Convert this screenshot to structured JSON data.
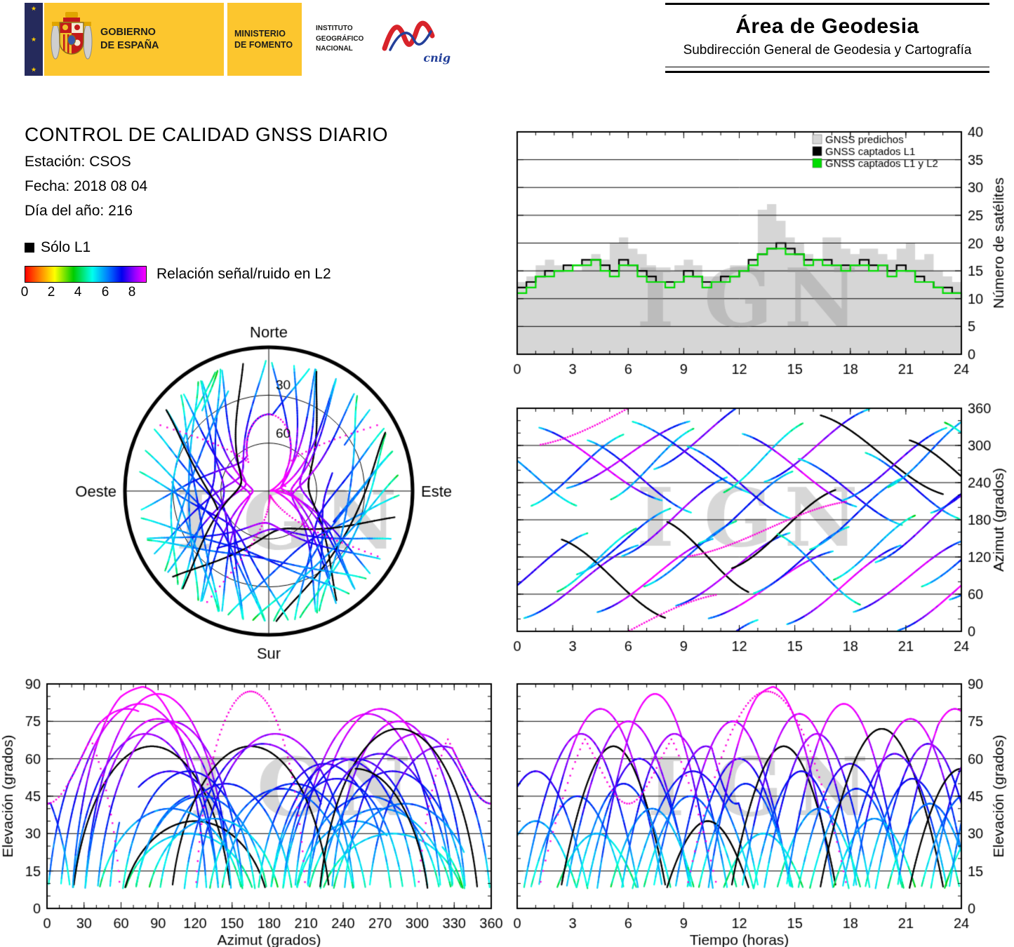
{
  "header": {
    "logo": {
      "gobierno_line1": "GOBIERNO",
      "gobierno_line2": "DE ESPAÑA",
      "ministerio_line1": "MINISTERIO",
      "ministerio_line2": "DE FOMENTO",
      "instituto_line1": "INSTITUTO",
      "instituto_line2": "GEOGRÁFICO",
      "instituto_line3": "NACIONAL",
      "cnig_label": "cnig",
      "yellow": "#FCC62E",
      "navy": "#252A5C"
    },
    "area": {
      "title": "Área de Geodesia",
      "subtitle": "Subdirección General de Geodesia y Cartografía"
    }
  },
  "report": {
    "title": "CONTROL DE CALIDAD GNSS DIARIO",
    "station_label": "Estación: CSOS",
    "date_label": "Fecha: 2018 08 04",
    "doy_label": "Día del año: 216"
  },
  "legend": {
    "l1_only": "Sólo L1",
    "l1_color": "#000000",
    "snr_label": "Relación señal/ruido en L2",
    "snr_ticks": [
      0,
      2,
      4,
      6,
      8
    ]
  },
  "chart_data": {
    "watermark": "IGN",
    "dotted_color": "#ff00dd",
    "colormap_stops": [
      [
        0,
        "#ff0000"
      ],
      [
        1.3,
        "#ff9900"
      ],
      [
        2.2,
        "#ffff00"
      ],
      [
        3.6,
        "#00cc00"
      ],
      [
        5.0,
        "#00ffee"
      ],
      [
        6.2,
        "#0077ff"
      ],
      [
        7.2,
        "#0000ee"
      ],
      [
        8.2,
        "#9900ff"
      ],
      [
        9,
        "#ff00ff"
      ]
    ],
    "model": {
      "elevation_cutoff_deg": 8,
      "north_max_el": 42,
      "north_sigma_deg": 40,
      "snr_base": 3.1,
      "snr_gain": 5.6,
      "snr_exp": 0.6,
      "snr_noise": 1.2
    },
    "satellite_passes": {
      "format": [
        "t_start_h",
        "duration_h",
        "az_start_deg",
        "az_end_deg",
        "el_max_deg",
        "snr_offset",
        "style_0norm_1L1only_2dotted"
      ],
      "passes": [
        [
          -2.0,
          6.0,
          40,
          160,
          55,
          0.3,
          0
        ],
        [
          -1.5,
          5.0,
          300,
          200,
          35,
          -0.2,
          0
        ],
        [
          0.2,
          6.5,
          20,
          140,
          70,
          0.5,
          0
        ],
        [
          0.5,
          5.5,
          200,
          320,
          45,
          0.0,
          0
        ],
        [
          1.0,
          7.0,
          330,
          210,
          80,
          0.6,
          0
        ],
        [
          1.8,
          5.0,
          60,
          170,
          30,
          -0.5,
          0
        ],
        [
          2.2,
          6.0,
          150,
          20,
          65,
          0.4,
          1
        ],
        [
          2.5,
          7.0,
          230,
          340,
          75,
          0.7,
          0
        ],
        [
          3.0,
          5.5,
          90,
          200,
          50,
          0.0,
          0
        ],
        [
          3.6,
          6.0,
          310,
          190,
          60,
          0.2,
          0
        ],
        [
          4.2,
          6.5,
          30,
          150,
          86,
          0.8,
          0
        ],
        [
          4.8,
          5.0,
          210,
          330,
          40,
          -0.3,
          0
        ],
        [
          5.5,
          6.0,
          120,
          250,
          70,
          0.5,
          0
        ],
        [
          6.0,
          7.0,
          340,
          220,
          55,
          0.1,
          0
        ],
        [
          6.6,
          5.5,
          70,
          180,
          45,
          -0.2,
          0
        ],
        [
          7.2,
          6.0,
          260,
          380,
          65,
          0.4,
          0
        ],
        [
          7.8,
          5.0,
          180,
          60,
          35,
          -0.4,
          1
        ],
        [
          8.4,
          6.5,
          40,
          160,
          75,
          0.6,
          0
        ],
        [
          9.0,
          6.0,
          300,
          180,
          60,
          0.2,
          0
        ],
        [
          9.6,
          5.5,
          140,
          260,
          50,
          0.0,
          0
        ],
        [
          10.2,
          7.0,
          20,
          130,
          89,
          0.8,
          0
        ],
        [
          10.8,
          5.0,
          220,
          340,
          30,
          -0.5,
          0
        ],
        [
          11.4,
          6.0,
          100,
          230,
          65,
          0.3,
          1
        ],
        [
          12.0,
          6.5,
          320,
          200,
          78,
          0.6,
          0
        ],
        [
          12.6,
          5.5,
          60,
          170,
          55,
          0.1,
          0
        ],
        [
          13.2,
          6.0,
          240,
          360,
          70,
          0.4,
          0
        ],
        [
          13.8,
          5.0,
          160,
          40,
          40,
          -0.3,
          0
        ],
        [
          14.4,
          6.5,
          10,
          140,
          82,
          0.7,
          0
        ],
        [
          15.0,
          6.0,
          280,
          170,
          58,
          0.1,
          0
        ],
        [
          15.6,
          5.5,
          130,
          250,
          48,
          -0.1,
          0
        ],
        [
          16.2,
          7.0,
          350,
          220,
          72,
          0.5,
          1
        ],
        [
          16.8,
          5.0,
          80,
          190,
          36,
          -0.4,
          0
        ],
        [
          17.4,
          6.0,
          210,
          330,
          62,
          0.3,
          0
        ],
        [
          18.0,
          6.5,
          30,
          150,
          76,
          0.6,
          0
        ],
        [
          18.6,
          5.5,
          290,
          180,
          52,
          0.0,
          0
        ],
        [
          19.2,
          6.0,
          110,
          240,
          66,
          0.3,
          0
        ],
        [
          19.8,
          5.0,
          230,
          350,
          42,
          -0.2,
          0
        ],
        [
          20.4,
          6.5,
          0,
          130,
          80,
          0.7,
          0
        ],
        [
          21.0,
          6.0,
          310,
          190,
          56,
          0.1,
          1
        ],
        [
          21.6,
          5.5,
          70,
          180,
          46,
          -0.1,
          0
        ],
        [
          22.2,
          6.0,
          190,
          310,
          68,
          0.4,
          0
        ],
        [
          22.8,
          5.0,
          340,
          230,
          34,
          -0.5,
          0
        ],
        [
          23.2,
          6.0,
          50,
          160,
          74,
          0.5,
          0
        ],
        [
          1.0,
          10.0,
          300,
          420,
          88,
          0.8,
          2
        ],
        [
          9.0,
          9.0,
          120,
          210,
          87,
          0.8,
          2
        ]
      ]
    },
    "charts": [
      {
        "id": "sat_count",
        "type": "area",
        "ylabel": "Número de satélites",
        "xlim": [
          0,
          24
        ],
        "ylim": [
          0,
          40
        ],
        "x_ticks": [
          0,
          3,
          6,
          9,
          12,
          15,
          18,
          21,
          24
        ],
        "y_ticks": [
          0,
          5,
          10,
          15,
          20,
          25,
          30,
          35,
          40
        ],
        "x_minor_step": 1,
        "x_step_hours": 0.5,
        "legend": [
          {
            "label": "GNSS predichos",
            "color": "#d6d6d6"
          },
          {
            "label": "GNSS captados L1",
            "color": "#000000"
          },
          {
            "label": "GNSS captados L1 y L2",
            "color": "#00dd00"
          }
        ],
        "series": [
          {
            "name": "GNSS predichos",
            "values": [
              13,
              14,
              16,
              17,
              16,
              16,
              15,
              17,
              18,
              17,
              20,
              21,
              19,
              18,
              16,
              15,
              15,
              16,
              17,
              16,
              14,
              14,
              15,
              16,
              16,
              17,
              26,
              27,
              24,
              21,
              20,
              18,
              17,
              21,
              21,
              19,
              18,
              19,
              19,
              18,
              17,
              19,
              20,
              17,
              18,
              15,
              14,
              13,
              12
            ]
          },
          {
            "name": "GNSS captados L1",
            "values": [
              12,
              13,
              14,
              15,
              15,
              16,
              16,
              17,
              17,
              16,
              15,
              17,
              16,
              15,
              14,
              13,
              13,
              13,
              15,
              14,
              13,
              13,
              14,
              14,
              15,
              17,
              18,
              19,
              20,
              19,
              18,
              17,
              17,
              17,
              16,
              16,
              16,
              17,
              16,
              16,
              15,
              16,
              15,
              14,
              13,
              12,
              12,
              11,
              11
            ]
          },
          {
            "name": "GNSS captados L1 y L2",
            "values": [
              11,
              12,
              14,
              14,
              15,
              15,
              16,
              16,
              17,
              15,
              14,
              16,
              16,
              14,
              13,
              13,
              12,
              13,
              14,
              14,
              12,
              13,
              13,
              14,
              15,
              16,
              18,
              19,
              19,
              18,
              18,
              16,
              17,
              16,
              16,
              15,
              16,
              16,
              15,
              16,
              14,
              15,
              15,
              13,
              13,
              12,
              11,
              11,
              10
            ]
          }
        ]
      },
      {
        "id": "skyplot",
        "type": "scatter",
        "projection": "polar",
        "labels": {
          "north": "Norte",
          "south": "Sur",
          "east": "Este",
          "west": "Oeste"
        },
        "elevation_rings": [
          30,
          60
        ]
      },
      {
        "id": "az_time",
        "type": "scatter",
        "ylabel": "Azimut (grados)",
        "xlim": [
          0,
          24
        ],
        "ylim": [
          0,
          360
        ],
        "x_ticks": [
          0,
          3,
          6,
          9,
          12,
          15,
          18,
          21,
          24
        ],
        "y_ticks": [
          0,
          60,
          120,
          180,
          240,
          300,
          360
        ],
        "x_minor_step": 1,
        "y_minor_step": 20
      },
      {
        "id": "el_az",
        "type": "scatter",
        "xlabel": "Azimut (grados)",
        "ylabel": "Elevación (grados)",
        "xlim": [
          0,
          360
        ],
        "ylim": [
          0,
          90
        ],
        "x_ticks": [
          0,
          30,
          60,
          90,
          120,
          150,
          180,
          210,
          240,
          270,
          300,
          330,
          360
        ],
        "y_ticks": [
          0,
          15,
          30,
          45,
          60,
          75,
          90
        ],
        "x_minor_step": 10,
        "y_minor_step": 5
      },
      {
        "id": "el_time",
        "type": "scatter",
        "xlabel": "Tiempo (horas)",
        "ylabel": "Elevación (grados)",
        "xlim": [
          0,
          24
        ],
        "ylim": [
          0,
          90
        ],
        "x_ticks": [
          0,
          3,
          6,
          9,
          12,
          15,
          18,
          21,
          24
        ],
        "y_ticks": [
          0,
          15,
          30,
          45,
          60,
          75,
          90
        ],
        "x_minor_step": 1,
        "y_minor_step": 5
      }
    ]
  }
}
